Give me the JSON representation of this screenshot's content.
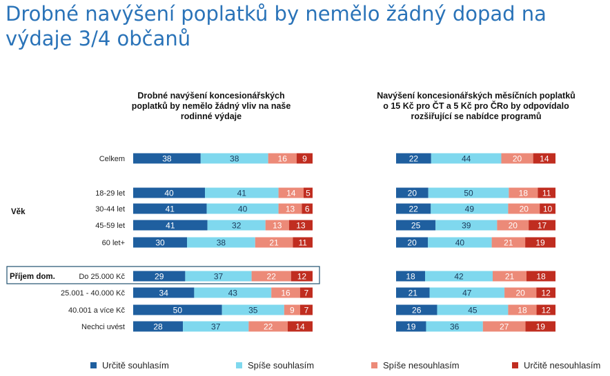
{
  "title": "Drobné navýšení poplatků by nemělo žádný dopad na výdaje 3/4 občanů",
  "colors": {
    "title": "#2a73b8",
    "s1": "#1f5f9f",
    "s2": "#7fd8ee",
    "s3": "#ec8a78",
    "s4": "#c02d20"
  },
  "chart_data": {
    "type": "bar",
    "stacked": true,
    "orientation": "horizontal",
    "group_labels": [
      "Věk",
      "Příjem dom."
    ],
    "categories": [
      "Celkem",
      "18-29 let",
      "30-44 let",
      "45-59 let",
      "60 let+",
      "Do 25.000 Kč",
      "25.001 - 40.000 Kč",
      "40.001 a více Kč",
      "Nechci uvést"
    ],
    "legend": [
      "Určitě souhlasím",
      "Spíše souhlasím",
      "Spíše nesouhlasím",
      "Určitě nesouhlasím"
    ],
    "panels": [
      {
        "title": "Drobné navýšení koncesionářských poplatků by nemělo žádný vliv na naše rodinné výdaje",
        "values": [
          [
            38,
            38,
            16,
            9
          ],
          [
            40,
            41,
            14,
            5
          ],
          [
            41,
            40,
            13,
            6
          ],
          [
            41,
            32,
            13,
            13
          ],
          [
            30,
            38,
            21,
            11
          ],
          [
            29,
            37,
            22,
            12
          ],
          [
            34,
            43,
            16,
            7
          ],
          [
            50,
            35,
            9,
            7
          ],
          [
            28,
            37,
            22,
            14
          ]
        ]
      },
      {
        "title": "Navýšení koncesionářských měsíčních poplatků o 15 Kč pro ČT a 5 Kč pro ČRo by odpovídalo rozšiřující se nabídce programů",
        "values": [
          [
            22,
            44,
            20,
            14
          ],
          [
            20,
            50,
            18,
            11
          ],
          [
            22,
            49,
            20,
            10
          ],
          [
            25,
            39,
            20,
            17
          ],
          [
            20,
            40,
            21,
            19
          ],
          [
            18,
            42,
            21,
            18
          ],
          [
            21,
            47,
            20,
            12
          ],
          [
            26,
            45,
            18,
            12
          ],
          [
            19,
            36,
            27,
            19
          ]
        ]
      }
    ]
  }
}
